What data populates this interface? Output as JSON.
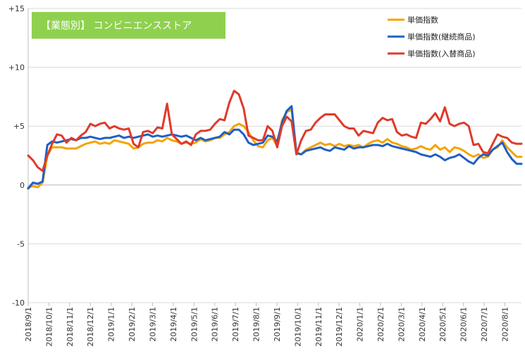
{
  "chart_data": {
    "type": "line",
    "title": "【業態別】 コンビニエンスストア",
    "title_bg": "#8fd14f",
    "ylim": [
      -10,
      15
    ],
    "yticks": [
      {
        "value": 15,
        "label": "+15"
      },
      {
        "value": 10,
        "label": "+10"
      },
      {
        "value": 5,
        "label": "+5"
      },
      {
        "value": 0,
        "label": "0"
      },
      {
        "value": -5,
        "label": "-5"
      },
      {
        "value": -10,
        "label": "-10"
      }
    ],
    "xticks": [
      "2018/9/1",
      "2018/10/1",
      "2018/11/1",
      "2018/12/1",
      "2019/1/1",
      "2019/2/1",
      "2019/3/1",
      "2019/4/1",
      "2019/5/1",
      "2019/6/1",
      "2019/7/1",
      "2019/8/1",
      "2019/9/1",
      "2019/10/1",
      "2019/11/1",
      "2019/12/1",
      "2020/1/1",
      "2020/2/1",
      "2020/3/1",
      "2020/4/1",
      "2020/5/1",
      "2020/6/1",
      "2020/7/1",
      "2020/8/1"
    ],
    "legend_position": "top-right",
    "series": [
      {
        "name": "単価指数",
        "color": "#f5a300",
        "values": [
          -0.2,
          -0.1,
          -0.2,
          0.2,
          2.5,
          3.2,
          3.2,
          3.2,
          3.1,
          3.1,
          3.1,
          3.3,
          3.5,
          3.6,
          3.7,
          3.5,
          3.6,
          3.5,
          3.8,
          3.7,
          3.6,
          3.5,
          3.1,
          3.2,
          3.5,
          3.6,
          3.6,
          3.8,
          3.7,
          4.0,
          3.8,
          3.7,
          3.5,
          3.6,
          3.5,
          3.6,
          3.9,
          3.7,
          3.8,
          4.0,
          4.0,
          4.3,
          4.5,
          5.0,
          5.2,
          5.0,
          4.5,
          3.8,
          3.3,
          3.2,
          3.8,
          4.0,
          3.3,
          5.5,
          6.2,
          6.4,
          2.8,
          2.6,
          3.0,
          3.2,
          3.4,
          3.6,
          3.4,
          3.5,
          3.3,
          3.5,
          3.3,
          3.4,
          3.3,
          3.4,
          3.2,
          3.5,
          3.7,
          3.8,
          3.6,
          3.9,
          3.6,
          3.5,
          3.3,
          3.2,
          3.0,
          3.1,
          3.3,
          3.1,
          3.0,
          3.4,
          3.0,
          3.2,
          2.8,
          3.2,
          3.1,
          2.9,
          2.6,
          2.4,
          2.6,
          2.3,
          2.4,
          3.0,
          3.2,
          3.8,
          3.2,
          2.8,
          2.4,
          2.4
        ]
      },
      {
        "name": "単価指数(継続商品)",
        "color": "#1f5fc4",
        "values": [
          -0.3,
          0.2,
          0.1,
          0.3,
          3.4,
          3.7,
          3.6,
          3.7,
          3.8,
          3.9,
          3.8,
          4.0,
          4.0,
          4.1,
          4.0,
          3.9,
          4.0,
          4.0,
          4.1,
          4.2,
          4.0,
          4.1,
          4.0,
          4.1,
          4.2,
          4.3,
          4.1,
          4.2,
          4.1,
          4.2,
          4.3,
          4.2,
          4.1,
          4.2,
          4.0,
          3.8,
          4.0,
          3.8,
          3.9,
          4.0,
          4.1,
          4.5,
          4.3,
          4.7,
          4.7,
          4.3,
          3.6,
          3.4,
          3.5,
          3.6,
          4.2,
          4.1,
          3.7,
          5.3,
          6.3,
          6.7,
          2.7,
          2.6,
          2.9,
          3.0,
          3.1,
          3.2,
          3.0,
          2.9,
          3.2,
          3.1,
          3.0,
          3.3,
          3.1,
          3.2,
          3.2,
          3.3,
          3.4,
          3.4,
          3.3,
          3.5,
          3.3,
          3.2,
          3.1,
          3.0,
          2.9,
          2.8,
          2.6,
          2.5,
          2.4,
          2.6,
          2.4,
          2.1,
          2.3,
          2.4,
          2.6,
          2.3,
          2.0,
          1.8,
          2.3,
          2.6,
          2.5,
          3.0,
          3.3,
          3.6,
          2.8,
          2.2,
          1.8,
          1.8
        ]
      },
      {
        "name": "単価指数(入替商品)",
        "color": "#e03a2b",
        "values": [
          2.5,
          2.1,
          1.5,
          1.2,
          2.5,
          3.5,
          4.3,
          4.2,
          3.6,
          4.0,
          3.8,
          4.2,
          4.5,
          5.2,
          5.0,
          5.2,
          5.3,
          4.8,
          5.0,
          4.8,
          4.7,
          4.8,
          3.5,
          3.2,
          4.5,
          4.6,
          4.4,
          4.9,
          4.8,
          6.9,
          4.3,
          3.9,
          3.5,
          3.7,
          3.4,
          4.3,
          4.6,
          4.6,
          4.7,
          5.2,
          5.6,
          5.5,
          7.0,
          8.0,
          7.7,
          6.5,
          4.2,
          4.0,
          3.8,
          3.8,
          5.0,
          4.6,
          3.2,
          5.0,
          5.8,
          5.4,
          2.6,
          3.8,
          4.6,
          4.7,
          5.3,
          5.7,
          6.0,
          6.0,
          6.0,
          5.5,
          5.0,
          4.8,
          4.8,
          4.2,
          4.6,
          4.5,
          4.4,
          5.3,
          5.7,
          5.5,
          5.6,
          4.5,
          4.2,
          4.3,
          4.1,
          4.0,
          5.3,
          5.2,
          5.6,
          6.1,
          5.4,
          6.6,
          5.2,
          5.0,
          5.2,
          5.3,
          5.0,
          3.4,
          3.5,
          2.8,
          2.7,
          3.5,
          4.3,
          4.1,
          4.0,
          3.6,
          3.5,
          3.5
        ]
      }
    ]
  }
}
